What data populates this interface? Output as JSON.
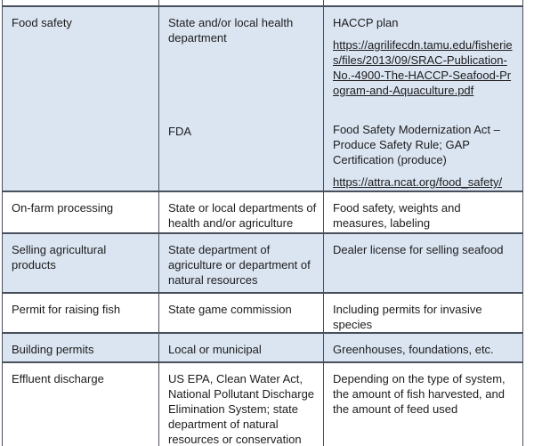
{
  "colors": {
    "row_shade": "#dbe5f1",
    "border": "#49505c",
    "text": "#1c1c1e"
  },
  "table": {
    "rows": [
      {
        "topic": "Food safety",
        "agency": {
          "p1": "State and/or local health department",
          "p2": "FDA"
        },
        "notes": {
          "p1": "HACCP plan",
          "link1": "https://agrilifecdn.tamu.edu/fisheries/files/2013/09/SRAC-Publication-No.-4900-The-HACCP-Seafood-Program-and-Aquaculture.pdf",
          "p2": "Food Safety Modernization Act – Produce Safety Rule; GAP Certification (produce)",
          "link2": "https://attra.ncat.org/food_safety/"
        }
      },
      {
        "topic": "On-farm processing",
        "agency": "State or local departments of health and/or agriculture",
        "notes": "Food safety, weights and measures, labeling"
      },
      {
        "topic": "Selling agricultural products",
        "agency": "State department of agriculture or department of natural resources",
        "notes": "Dealer license for selling seafood"
      },
      {
        "topic": "Permit for raising fish",
        "agency": "State game commission",
        "notes": "Including permits for invasive species"
      },
      {
        "topic": "Building permits",
        "agency": "Local or municipal",
        "notes": "Greenhouses, foundations, etc."
      },
      {
        "topic": "Effluent discharge",
        "agency": "US EPA, Clean Water Act, National Pollutant Discharge Elimination System; state department of natural resources or conservation",
        "notes": "Depending on the type of system, the amount of fish harvested, and the amount of feed used"
      }
    ]
  }
}
